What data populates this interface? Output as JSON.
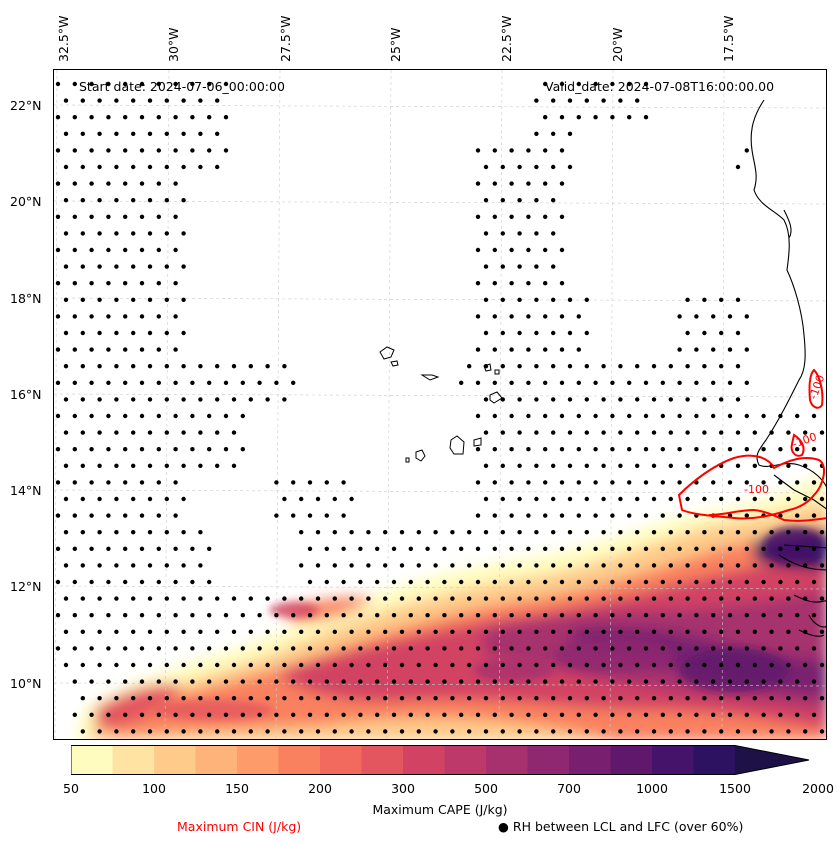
{
  "map": {
    "start_label": "Start date: 2024-07-06_00:00:00",
    "valid_label": "Valid_date: 2024-07-08T16:00:00.00",
    "lon_labels": [
      "32.5°W",
      "30°W",
      "27.5°W",
      "25°W",
      "22.5°W",
      "20°W",
      "17.5°W"
    ],
    "lat_labels": [
      "22°N",
      "20°N",
      "18°N",
      "16°N",
      "14°N",
      "12°N",
      "10°N"
    ],
    "cin_contour_labels": [
      "-100",
      "-100",
      "-100"
    ],
    "colors": {
      "coast": "#000000",
      "cin": "#ff0000",
      "grid": "#cccccc"
    }
  },
  "colorbar": {
    "levels": [
      "50",
      "100",
      "150",
      "200",
      "300",
      "500",
      "700",
      "1000",
      "1500",
      "2000"
    ],
    "colors": [
      "#fffcbf",
      "#fee3a2",
      "#fecb8a",
      "#feb37a",
      "#fd9b6b",
      "#fa815f",
      "#f26a5d",
      "#e3555f",
      "#d24363",
      "#bc3969",
      "#a6316e",
      "#8f2870",
      "#78206f",
      "#5f186c",
      "#45136a",
      "#2d1262",
      "#1d1147"
    ],
    "label": "Maximum CAPE (J/kg)"
  },
  "legend": {
    "cin_label": "Maximum CIN (J/kg)",
    "rh_label": "● RH between LCL and LFC (over 60%)"
  }
}
